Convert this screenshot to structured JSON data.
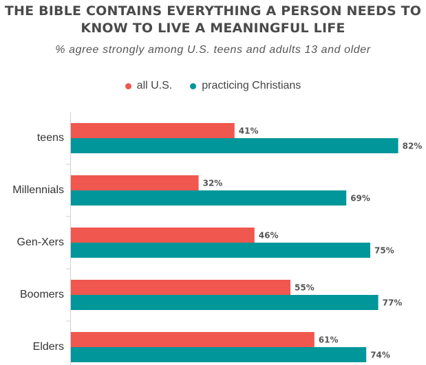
{
  "title_line1": "THE BIBLE CONTAINS EVERYTHING A PERSON NEEDS TO",
  "title_line2": "KNOW TO LIVE A MEANINGFUL LIFE",
  "subtitle": "% agree strongly among U.S. teens and adults 13 and older",
  "colors": {
    "all_us": "#f0574f",
    "practicing": "#00969a",
    "axis": "#cfcfcf"
  },
  "chart_data": {
    "type": "bar",
    "orientation": "horizontal",
    "categories": [
      "teens",
      "Millennials",
      "Gen-Xers",
      "Boomers",
      "Elders"
    ],
    "series": [
      {
        "name": "all U.S.",
        "values": [
          41,
          32,
          46,
          55,
          61
        ]
      },
      {
        "name": "practicing Christians",
        "values": [
          82,
          69,
          75,
          77,
          74
        ]
      }
    ],
    "value_suffix": "%",
    "xlim": [
      0,
      100
    ],
    "legend_position": "top",
    "grid": false
  }
}
